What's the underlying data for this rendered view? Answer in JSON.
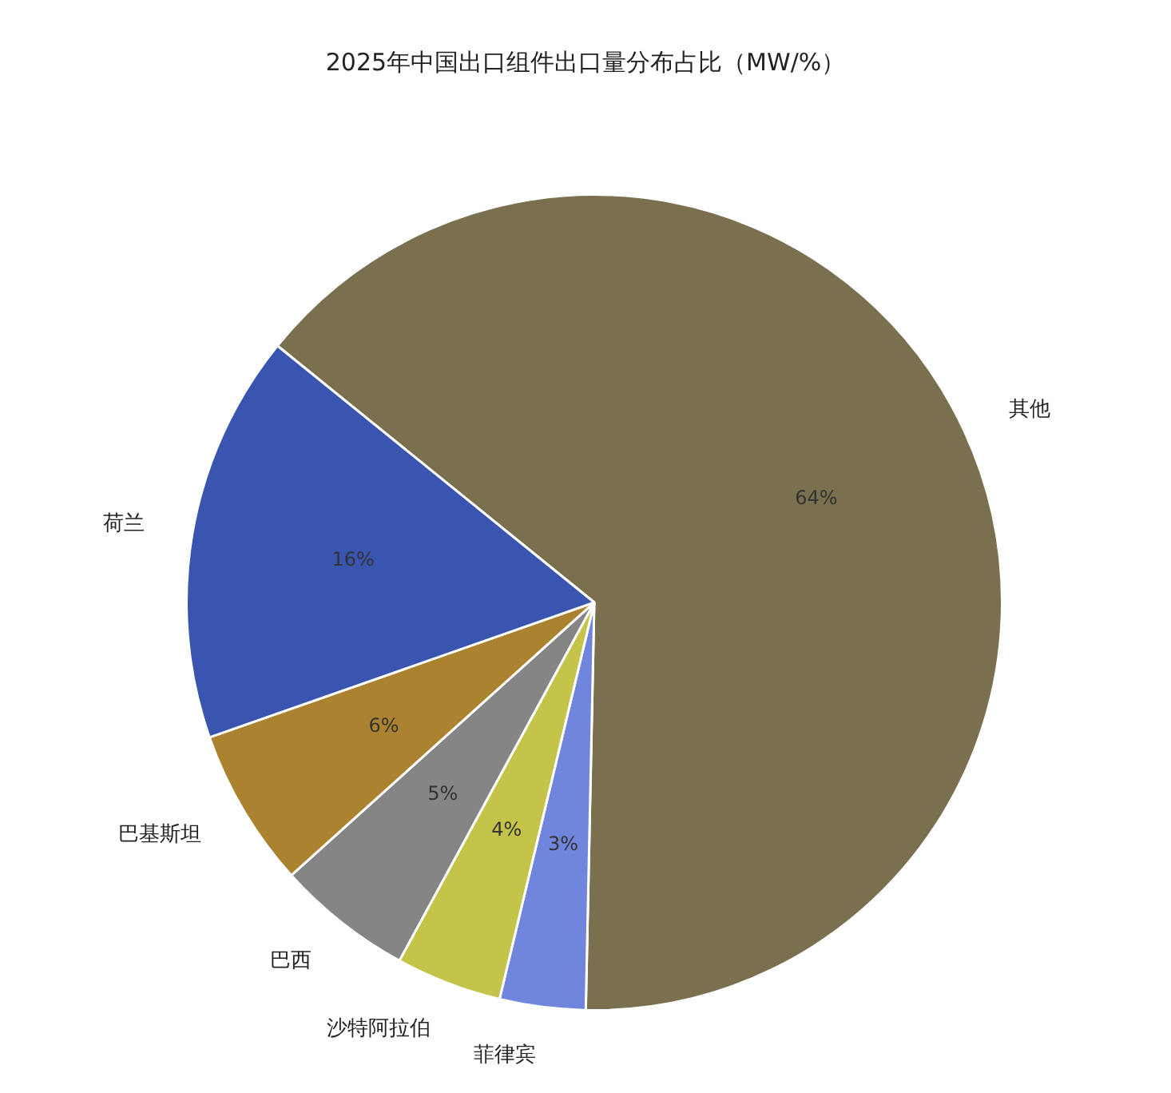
{
  "chart_data": {
    "type": "pie",
    "title": "2025年中国出口组件出口量分布占比（MW/%）",
    "categories": [
      "其他",
      "菲律宾",
      "沙特阿拉伯",
      "巴西",
      "巴基斯坦",
      "荷兰"
    ],
    "values": [
      64.5,
      3.4,
      4.2,
      5.4,
      6.3,
      16.2
    ],
    "value_labels": [
      "64%",
      "3%",
      "4%",
      "5%",
      "6%",
      "16%"
    ],
    "colors": [
      "#7a6f4f",
      "#6f86dc",
      "#c4c44a",
      "#858585",
      "#ab8230",
      "#3a55b0"
    ],
    "legend": false
  }
}
